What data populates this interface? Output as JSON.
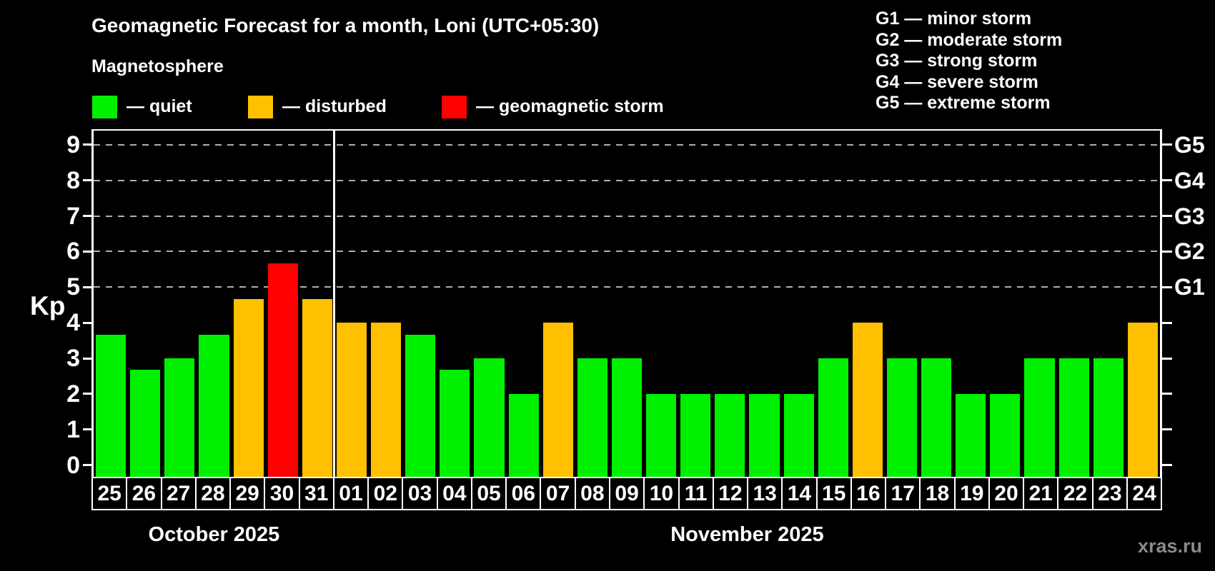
{
  "header": {
    "title": "Geomagnetic Forecast for a month, Loni (UTC+05:30)",
    "subtitle": "Magnetosphere"
  },
  "legend": {
    "items": [
      {
        "key": "quiet",
        "label": "— quiet",
        "color": "#00f000"
      },
      {
        "key": "disturbed",
        "label": "— disturbed",
        "color": "#ffc000"
      },
      {
        "key": "storm",
        "label": "— geomagnetic storm",
        "color": "#ff0000"
      }
    ]
  },
  "storm_scale": {
    "items": [
      {
        "label": "G1 — minor storm"
      },
      {
        "label": "G2 — moderate storm"
      },
      {
        "label": "G3 — strong storm"
      },
      {
        "label": "G4 — severe storm"
      },
      {
        "label": "G5 — extreme storm"
      }
    ]
  },
  "axis": {
    "kp_label": "Kp",
    "y_ticks": [
      0,
      1,
      2,
      3,
      4,
      5,
      6,
      7,
      8,
      9
    ]
  },
  "watermark": "xras.ru",
  "chart_data": {
    "type": "bar",
    "title": "Geomagnetic Forecast for a month, Loni (UTC+05:30)",
    "subtitle": "Magnetosphere",
    "ylabel": "Kp",
    "ylim": [
      0,
      9
    ],
    "grid": "dashed horizontal at Kp 5-9 only",
    "legend_position": "top",
    "gridlines_kp": [
      5,
      6,
      7,
      8,
      9
    ],
    "g_scale": [
      {
        "label": "G1",
        "kp": 5
      },
      {
        "label": "G2",
        "kp": 6
      },
      {
        "label": "G3",
        "kp": 7
      },
      {
        "label": "G4",
        "kp": 8
      },
      {
        "label": "G5",
        "kp": 9
      }
    ],
    "months": [
      {
        "label": "October 2025",
        "days": 7
      },
      {
        "label": "November 2025",
        "days": 24
      }
    ],
    "categories": [
      "25",
      "26",
      "27",
      "28",
      "29",
      "30",
      "31",
      "01",
      "02",
      "03",
      "04",
      "05",
      "06",
      "07",
      "08",
      "09",
      "10",
      "11",
      "12",
      "13",
      "14",
      "15",
      "16",
      "17",
      "18",
      "19",
      "20",
      "21",
      "22",
      "23",
      "24"
    ],
    "values": [
      3.67,
      2.67,
      3,
      3.67,
      4.67,
      5.67,
      4.67,
      4,
      4,
      3.67,
      2.67,
      3,
      2,
      4,
      3,
      3,
      2,
      2,
      2,
      2,
      2,
      3,
      4,
      3,
      3,
      2,
      2,
      3,
      3,
      3,
      4
    ],
    "status": [
      "quiet",
      "quiet",
      "quiet",
      "quiet",
      "disturbed",
      "storm",
      "disturbed",
      "disturbed",
      "disturbed",
      "quiet",
      "quiet",
      "quiet",
      "quiet",
      "disturbed",
      "quiet",
      "quiet",
      "quiet",
      "quiet",
      "quiet",
      "quiet",
      "quiet",
      "quiet",
      "disturbed",
      "quiet",
      "quiet",
      "quiet",
      "quiet",
      "quiet",
      "quiet",
      "quiet",
      "disturbed"
    ]
  }
}
